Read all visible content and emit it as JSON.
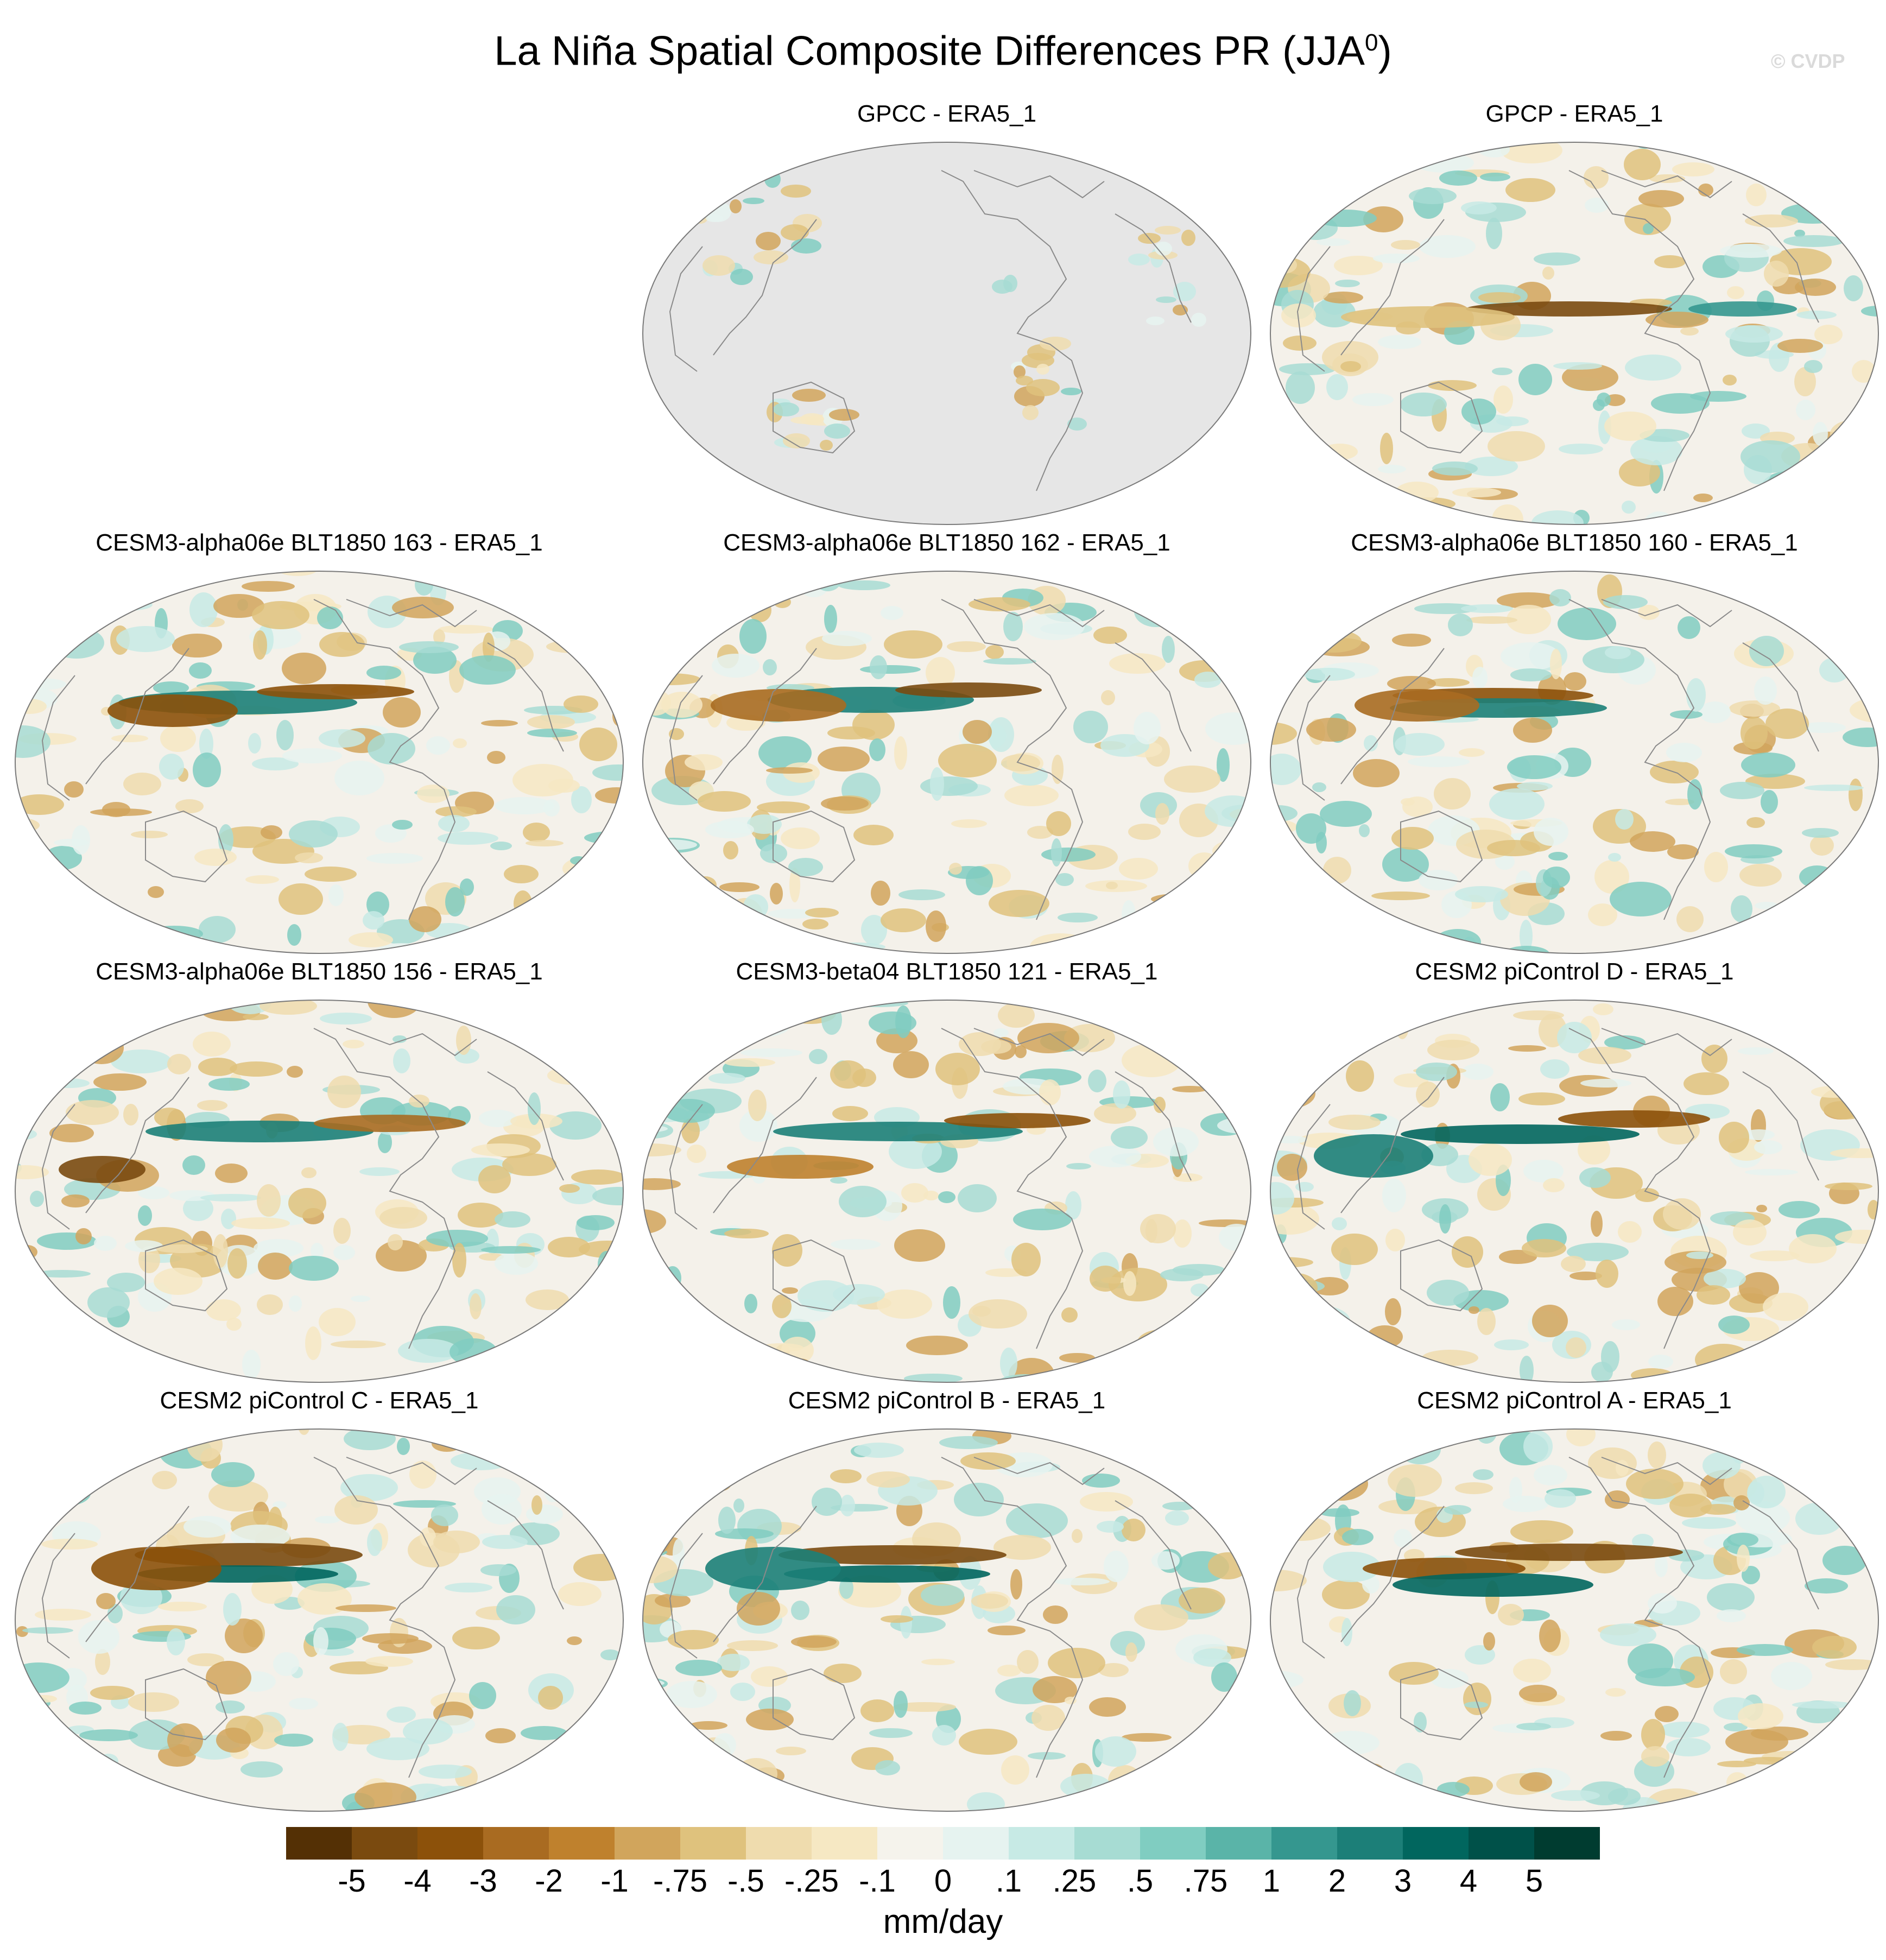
{
  "figure": {
    "title_main": "La Niña Spatial Composite Differences PR (JJA",
    "title_superscript": "0",
    "title_close": ")",
    "watermark": "© CVDP"
  },
  "panels": [
    {
      "title": "GPCC - ERA5_1",
      "pattern": "land-only"
    },
    {
      "title": "GPCP - ERA5_1",
      "pattern": "gpcp"
    },
    {
      "title": "CESM3-alpha06e BLT1850 163 - ERA5_1",
      "pattern": "a"
    },
    {
      "title": "CESM3-alpha06e BLT1850 162 - ERA5_1",
      "pattern": "b"
    },
    {
      "title": "CESM3-alpha06e BLT1850 160 - ERA5_1",
      "pattern": "c"
    },
    {
      "title": "CESM3-alpha06e BLT1850 156 - ERA5_1",
      "pattern": "d"
    },
    {
      "title": "CESM3-beta04 BLT1850 121 - ERA5_1",
      "pattern": "e"
    },
    {
      "title": "CESM2 piControl D - ERA5_1",
      "pattern": "f"
    },
    {
      "title": "CESM2 piControl C - ERA5_1",
      "pattern": "g"
    },
    {
      "title": "CESM2 piControl B - ERA5_1",
      "pattern": "h"
    },
    {
      "title": "CESM2 piControl A - ERA5_1",
      "pattern": "i"
    }
  ],
  "colorbar": {
    "units": "mm/day",
    "labels": [
      "-5",
      "-4",
      "-3",
      "-2",
      "-1",
      "-.75",
      "-.5",
      "-.25",
      "-.1",
      "0",
      ".1",
      ".25",
      ".5",
      ".75",
      "1",
      "2",
      "3",
      "4",
      "5"
    ],
    "colors": [
      "#543005",
      "#7a4a0f",
      "#8c510a",
      "#a96b21",
      "#bf812d",
      "#d1a55c",
      "#dfc27d",
      "#efdcae",
      "#f6e8c3",
      "#f5f3ec",
      "#e6f3f0",
      "#c7eae5",
      "#a7dcd3",
      "#80cdc1",
      "#5ab4a8",
      "#35978f",
      "#1c7f78",
      "#01665e",
      "#005149",
      "#003c30"
    ]
  },
  "colors": {
    "land_mask": "#e6e6e6",
    "coast": "#8a8a8a",
    "neutral": "#f4f1ea"
  }
}
